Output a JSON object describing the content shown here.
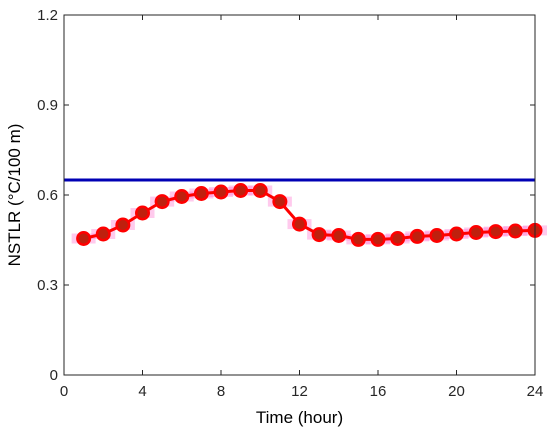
{
  "chart_data": {
    "type": "line",
    "xlabel": "Time (hour)",
    "ylabel": "NSTLR (°C/100 m)",
    "xlim": [
      0,
      24
    ],
    "ylim": [
      0,
      1.2
    ],
    "xticks": [
      0,
      4,
      8,
      12,
      16,
      20,
      24
    ],
    "xtick_labels": [
      "0",
      "4",
      "8",
      "12",
      "16",
      "20",
      "24"
    ],
    "yticks": [
      0,
      0.3,
      0.6,
      0.9,
      1.2
    ],
    "ytick_labels": [
      "0",
      "0.3",
      "0.6",
      "0.9",
      "1.2"
    ],
    "grid": false,
    "series": [
      {
        "color": "#ff0000",
        "marker_fill": "#ff0000",
        "marker_inner_fill": "#8b3a1a",
        "band_color": "#ff66cc",
        "x": [
          1,
          2,
          3,
          4,
          5,
          6,
          7,
          8,
          9,
          10,
          11,
          12,
          13,
          14,
          15,
          16,
          17,
          18,
          19,
          20,
          21,
          22,
          23,
          24
        ],
        "y": [
          0.455,
          0.47,
          0.5,
          0.54,
          0.578,
          0.595,
          0.605,
          0.61,
          0.615,
          0.615,
          0.578,
          0.503,
          0.468,
          0.465,
          0.452,
          0.452,
          0.455,
          0.462,
          0.465,
          0.47,
          0.475,
          0.478,
          0.48,
          0.482
        ]
      },
      {
        "color": "#0000b4",
        "x": [
          0,
          24
        ],
        "y": [
          0.65,
          0.65
        ]
      }
    ]
  }
}
